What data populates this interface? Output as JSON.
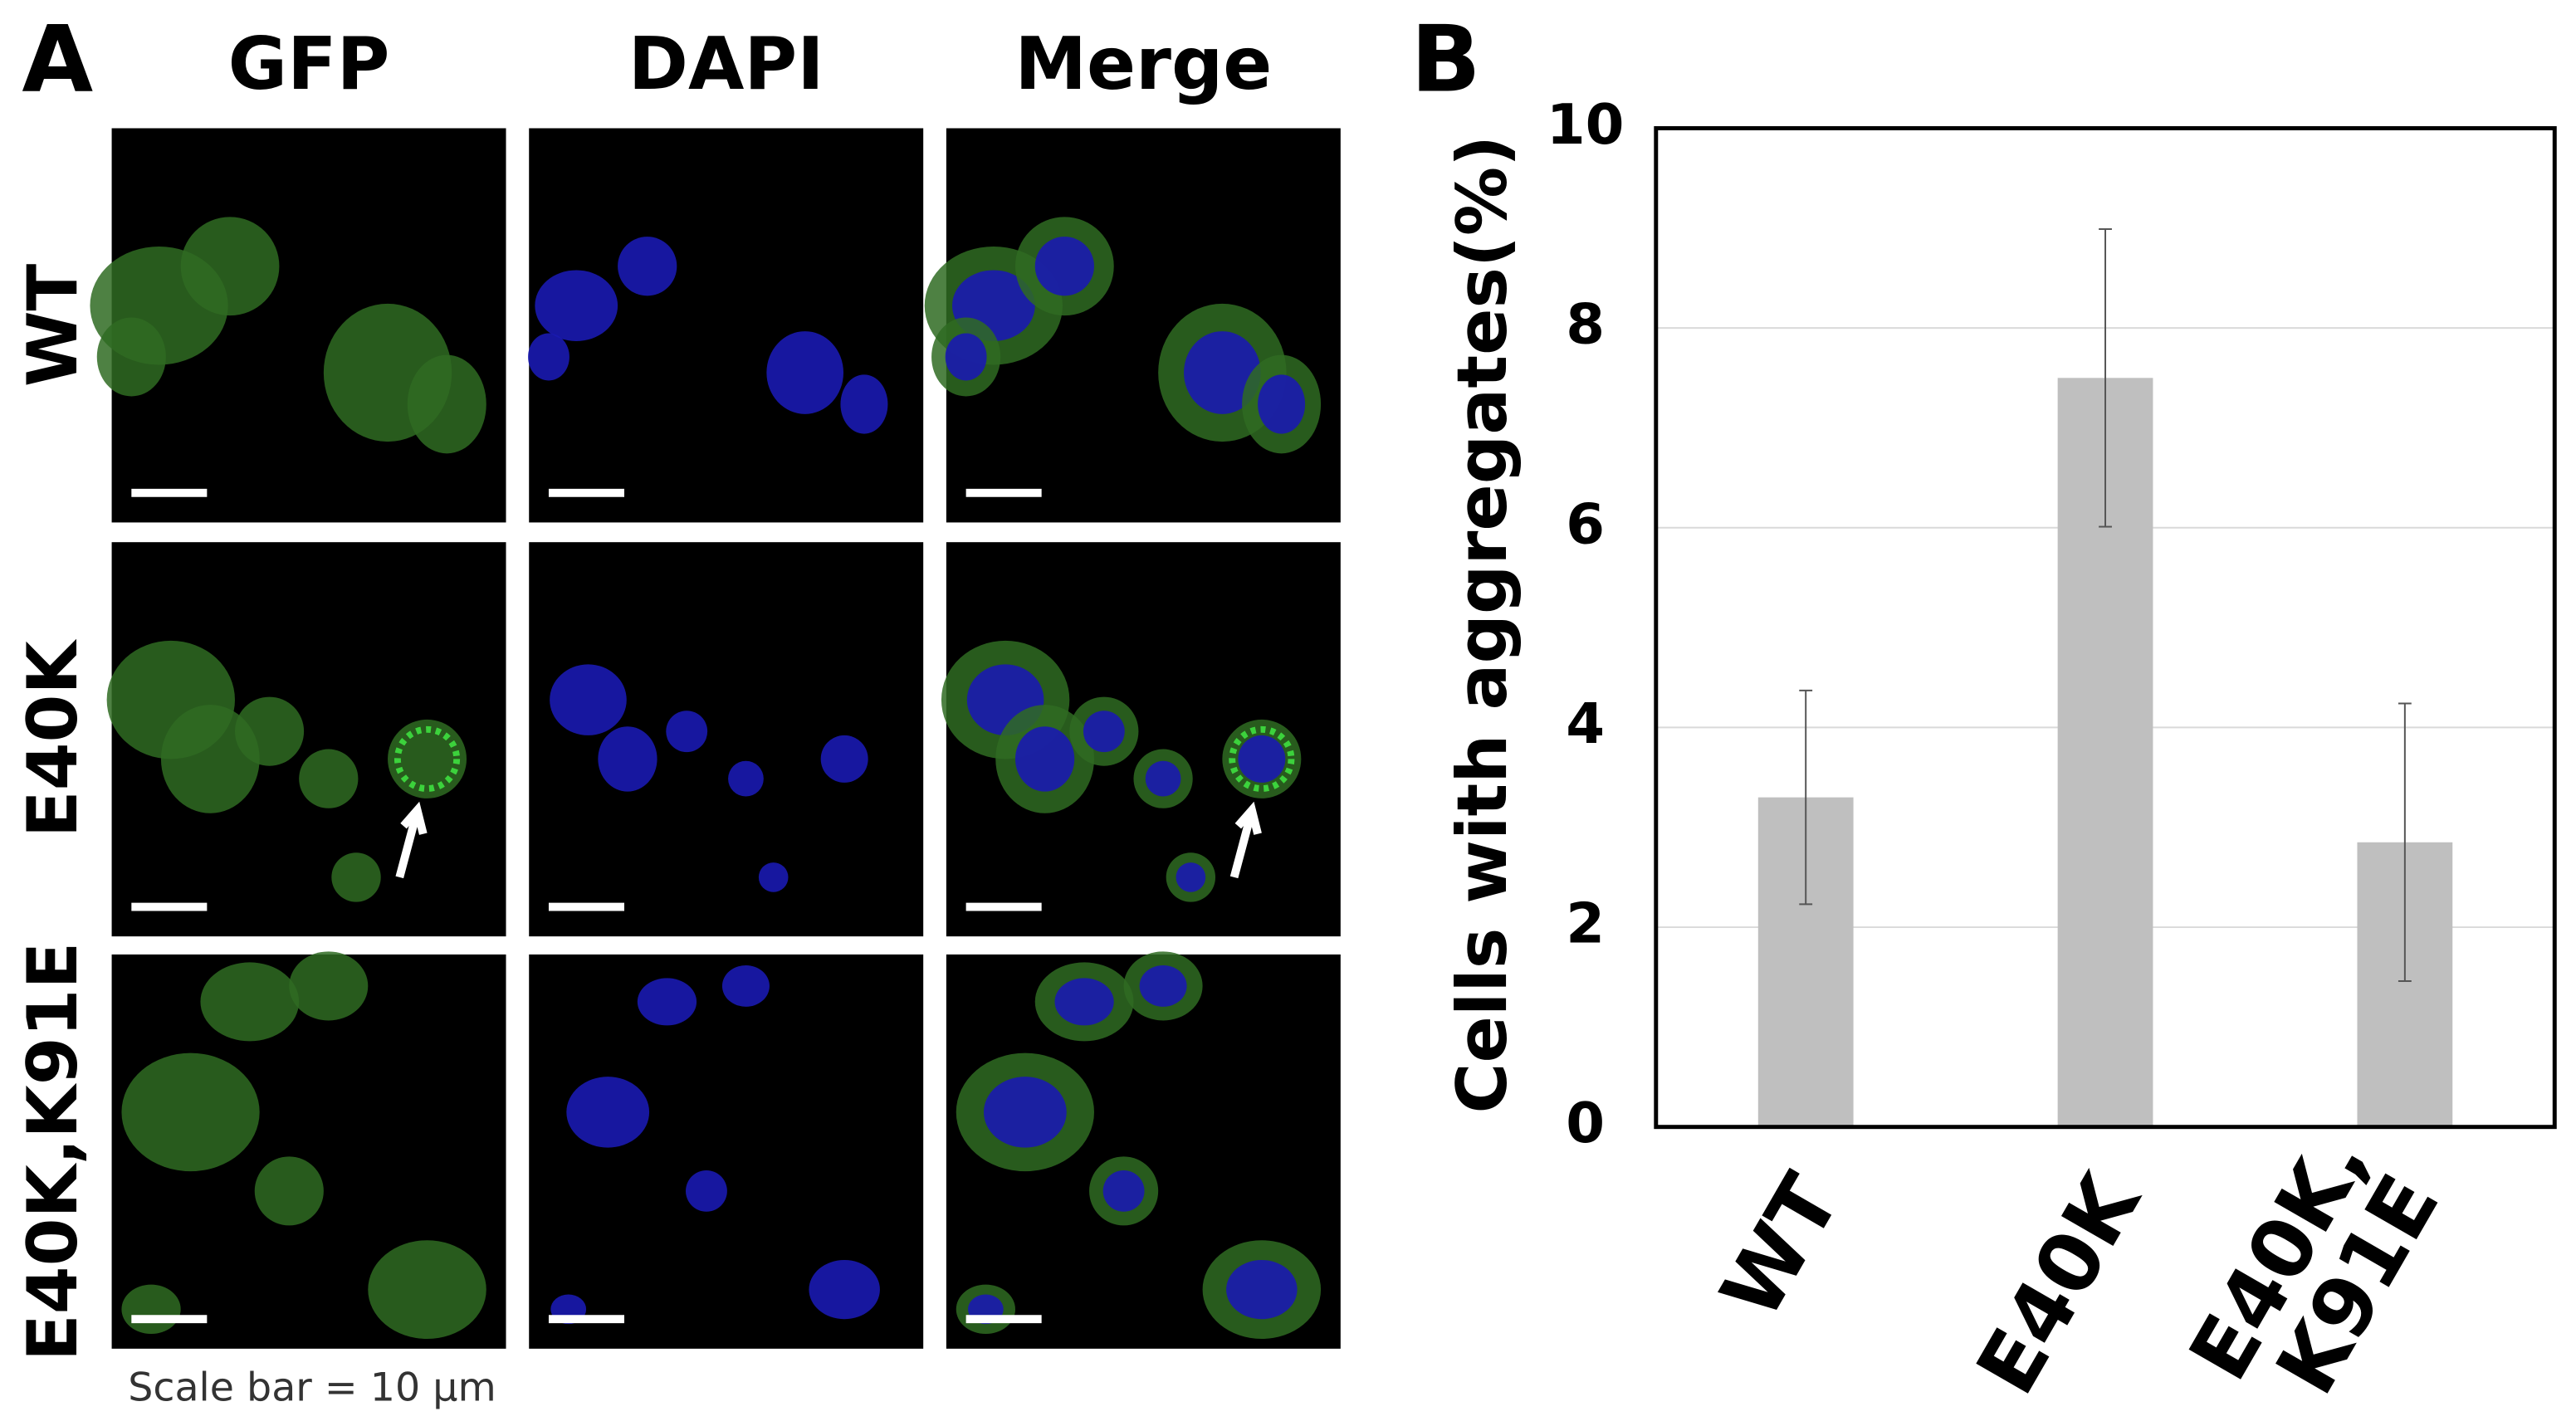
{
  "panel_a": {
    "label": "A",
    "columns": [
      "GFP",
      "DAPI",
      "Merge"
    ],
    "rows": [
      "WT",
      "E40K",
      "E40K,K91E"
    ],
    "scale_bar": "Scale bar = 10 µm"
  },
  "chart_data": {
    "type": "bar",
    "panel_label": "B",
    "y_label": "Cells with aggregates(%)",
    "categories": [
      "WT",
      "E40K",
      "E40K,\nK91E"
    ],
    "values": [
      3.3,
      7.5,
      2.85
    ],
    "errors": [
      1.07,
      1.49,
      1.39
    ],
    "color": "#bfbfbf",
    "ylim": [
      0,
      10
    ],
    "yticks": [
      0,
      2,
      4,
      6,
      8,
      10
    ],
    "grid": true
  }
}
